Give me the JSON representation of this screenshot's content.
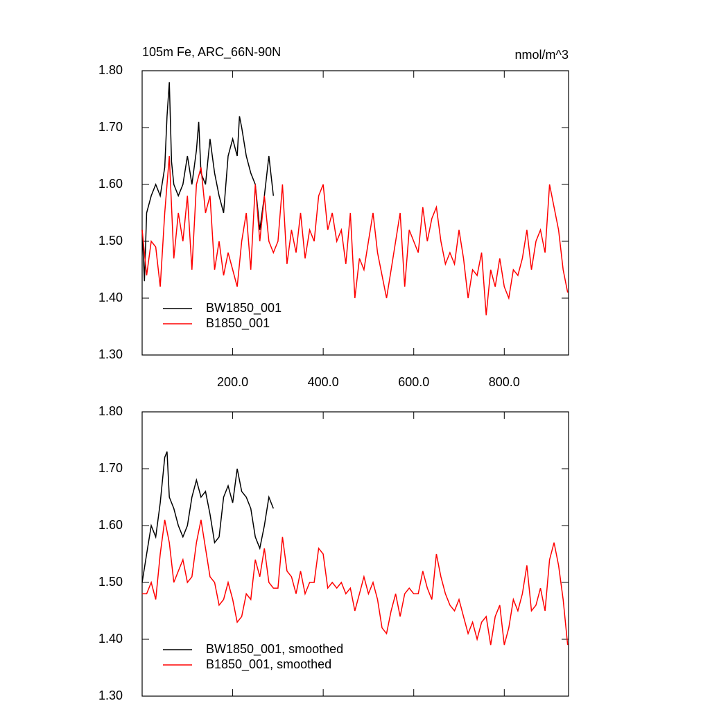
{
  "chart_data": [
    {
      "type": "line",
      "title": "105m Fe, ARC_66N-90N",
      "units": "nmol/m^3",
      "xlim": [
        0,
        942
      ],
      "ylim": [
        1.3,
        1.8
      ],
      "xticks": [
        {
          "value": 200,
          "label": "200.0"
        },
        {
          "value": 400,
          "label": "400.0"
        },
        {
          "value": 600,
          "label": "600.0"
        },
        {
          "value": 800,
          "label": "800.0"
        }
      ],
      "xtick_labels": true,
      "yticks": [
        {
          "value": 1.3,
          "label": "1.30"
        },
        {
          "value": 1.4,
          "label": "1.40"
        },
        {
          "value": 1.5,
          "label": "1.50"
        },
        {
          "value": 1.6,
          "label": "1.60"
        },
        {
          "value": 1.7,
          "label": "1.70"
        },
        {
          "value": 1.8,
          "label": "1.80"
        }
      ],
      "legend": "lower-left",
      "series": [
        {
          "name": "BW1850_001",
          "color": "#000000",
          "x": [
            0,
            5,
            10,
            20,
            30,
            40,
            50,
            55,
            60,
            65,
            70,
            80,
            90,
            100,
            110,
            120,
            125,
            130,
            140,
            150,
            160,
            170,
            180,
            190,
            200,
            210,
            215,
            220,
            230,
            240,
            250,
            260,
            270,
            280,
            290
          ],
          "values": [
            1.52,
            1.43,
            1.55,
            1.58,
            1.6,
            1.58,
            1.63,
            1.72,
            1.78,
            1.64,
            1.6,
            1.58,
            1.6,
            1.65,
            1.6,
            1.66,
            1.71,
            1.62,
            1.6,
            1.68,
            1.62,
            1.58,
            1.55,
            1.65,
            1.68,
            1.65,
            1.72,
            1.7,
            1.65,
            1.62,
            1.6,
            1.52,
            1.58,
            1.65,
            1.58
          ]
        },
        {
          "name": "B1850_001",
          "color": "#ff0000",
          "x": [
            0,
            10,
            20,
            30,
            40,
            50,
            60,
            70,
            80,
            90,
            100,
            110,
            120,
            130,
            140,
            150,
            160,
            170,
            180,
            190,
            200,
            210,
            220,
            230,
            240,
            250,
            260,
            270,
            280,
            290,
            300,
            310,
            320,
            330,
            340,
            350,
            360,
            370,
            380,
            390,
            400,
            410,
            420,
            430,
            440,
            450,
            460,
            470,
            480,
            490,
            500,
            510,
            520,
            530,
            540,
            550,
            560,
            570,
            580,
            590,
            600,
            610,
            620,
            630,
            640,
            650,
            660,
            670,
            680,
            690,
            700,
            710,
            720,
            730,
            740,
            750,
            760,
            770,
            780,
            790,
            800,
            810,
            820,
            830,
            840,
            850,
            860,
            870,
            880,
            890,
            900,
            910,
            920,
            930,
            940
          ],
          "values": [
            1.52,
            1.44,
            1.5,
            1.49,
            1.42,
            1.55,
            1.65,
            1.47,
            1.55,
            1.5,
            1.58,
            1.45,
            1.6,
            1.63,
            1.55,
            1.58,
            1.45,
            1.5,
            1.44,
            1.48,
            1.45,
            1.42,
            1.5,
            1.55,
            1.45,
            1.6,
            1.5,
            1.58,
            1.5,
            1.48,
            1.5,
            1.6,
            1.46,
            1.52,
            1.48,
            1.55,
            1.47,
            1.52,
            1.5,
            1.58,
            1.6,
            1.52,
            1.55,
            1.5,
            1.52,
            1.46,
            1.55,
            1.4,
            1.47,
            1.45,
            1.5,
            1.55,
            1.48,
            1.44,
            1.4,
            1.45,
            1.5,
            1.55,
            1.42,
            1.52,
            1.5,
            1.48,
            1.56,
            1.5,
            1.54,
            1.56,
            1.5,
            1.46,
            1.48,
            1.46,
            1.52,
            1.47,
            1.4,
            1.45,
            1.44,
            1.48,
            1.37,
            1.45,
            1.42,
            1.47,
            1.42,
            1.4,
            1.45,
            1.44,
            1.47,
            1.52,
            1.45,
            1.5,
            1.52,
            1.48,
            1.6,
            1.56,
            1.52,
            1.45,
            1.41
          ]
        }
      ]
    },
    {
      "type": "line",
      "xlim": [
        0,
        942
      ],
      "ylim": [
        1.3,
        1.8
      ],
      "xticks": [
        200,
        400,
        600,
        800
      ],
      "xtick_labels": false,
      "yticks": [
        {
          "value": 1.3,
          "label": "1.30"
        },
        {
          "value": 1.4,
          "label": "1.40"
        },
        {
          "value": 1.5,
          "label": "1.50"
        },
        {
          "value": 1.6,
          "label": "1.60"
        },
        {
          "value": 1.7,
          "label": "1.70"
        },
        {
          "value": 1.8,
          "label": "1.80"
        }
      ],
      "legend": "lower-left",
      "series": [
        {
          "name": "BW1850_001, smoothed",
          "color": "#000000",
          "x": [
            0,
            10,
            20,
            30,
            40,
            50,
            55,
            60,
            70,
            80,
            90,
            100,
            110,
            120,
            130,
            140,
            150,
            160,
            170,
            180,
            190,
            200,
            210,
            220,
            230,
            240,
            250,
            260,
            270,
            280,
            290
          ],
          "values": [
            1.5,
            1.55,
            1.6,
            1.58,
            1.64,
            1.72,
            1.73,
            1.65,
            1.63,
            1.6,
            1.58,
            1.6,
            1.65,
            1.68,
            1.65,
            1.66,
            1.62,
            1.57,
            1.58,
            1.65,
            1.67,
            1.64,
            1.7,
            1.66,
            1.65,
            1.63,
            1.58,
            1.56,
            1.6,
            1.65,
            1.63
          ]
        },
        {
          "name": "B1850_001, smoothed",
          "color": "#ff0000",
          "x": [
            0,
            10,
            20,
            30,
            40,
            50,
            60,
            70,
            80,
            90,
            100,
            110,
            120,
            130,
            140,
            150,
            160,
            170,
            180,
            190,
            200,
            210,
            220,
            230,
            240,
            250,
            260,
            270,
            280,
            290,
            300,
            310,
            320,
            330,
            340,
            350,
            360,
            370,
            380,
            390,
            400,
            410,
            420,
            430,
            440,
            450,
            460,
            470,
            480,
            490,
            500,
            510,
            520,
            530,
            540,
            550,
            560,
            570,
            580,
            590,
            600,
            610,
            620,
            630,
            640,
            650,
            660,
            670,
            680,
            690,
            700,
            710,
            720,
            730,
            740,
            750,
            760,
            770,
            780,
            790,
            800,
            810,
            820,
            830,
            840,
            850,
            860,
            870,
            880,
            890,
            900,
            910,
            920,
            930,
            940
          ],
          "values": [
            1.48,
            1.48,
            1.5,
            1.47,
            1.55,
            1.61,
            1.57,
            1.5,
            1.52,
            1.54,
            1.5,
            1.51,
            1.57,
            1.61,
            1.56,
            1.51,
            1.5,
            1.46,
            1.47,
            1.5,
            1.47,
            1.43,
            1.44,
            1.48,
            1.47,
            1.54,
            1.51,
            1.56,
            1.5,
            1.49,
            1.49,
            1.58,
            1.52,
            1.51,
            1.48,
            1.52,
            1.48,
            1.5,
            1.5,
            1.56,
            1.55,
            1.49,
            1.5,
            1.49,
            1.5,
            1.48,
            1.49,
            1.45,
            1.48,
            1.51,
            1.48,
            1.5,
            1.47,
            1.42,
            1.41,
            1.45,
            1.48,
            1.44,
            1.48,
            1.49,
            1.48,
            1.48,
            1.52,
            1.49,
            1.47,
            1.55,
            1.51,
            1.48,
            1.46,
            1.45,
            1.47,
            1.44,
            1.41,
            1.43,
            1.4,
            1.43,
            1.44,
            1.39,
            1.44,
            1.46,
            1.39,
            1.42,
            1.47,
            1.45,
            1.48,
            1.53,
            1.45,
            1.46,
            1.49,
            1.45,
            1.54,
            1.57,
            1.53,
            1.47,
            1.39
          ]
        }
      ]
    }
  ]
}
